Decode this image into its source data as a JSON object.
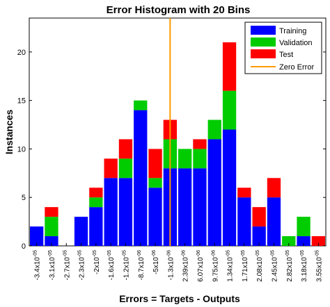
{
  "chart_data": {
    "type": "bar",
    "stacked": true,
    "title": "Error Histogram with 20 Bins",
    "xlabel": "Errors = Targets - Outputs",
    "ylabel": "Instances",
    "ylim": [
      0,
      23.5
    ],
    "yticks": [
      0,
      5,
      10,
      15,
      20
    ],
    "grid": false,
    "legend_position": "top-right",
    "categories": [
      {
        "mant": "-3.4x10",
        "exp": "-05"
      },
      {
        "mant": "-3.1x10",
        "exp": "-05"
      },
      {
        "mant": "-2.7x10",
        "exp": "-05"
      },
      {
        "mant": "-2.3x10",
        "exp": "-05"
      },
      {
        "mant": "-2x10",
        "exp": "-05"
      },
      {
        "mant": "-1.6x10",
        "exp": "-05"
      },
      {
        "mant": "-1.2x10",
        "exp": "-05"
      },
      {
        "mant": "-8.7x10",
        "exp": "-06"
      },
      {
        "mant": "-5x10",
        "exp": "-06"
      },
      {
        "mant": "-1.3x10",
        "exp": "-06"
      },
      {
        "mant": "2.39x10",
        "exp": "-06"
      },
      {
        "mant": "6.07x10",
        "exp": "-06"
      },
      {
        "mant": "9.75x10",
        "exp": "-06"
      },
      {
        "mant": "1.34x10",
        "exp": "-05"
      },
      {
        "mant": "1.71x10",
        "exp": "-05"
      },
      {
        "mant": "2.08x10",
        "exp": "-05"
      },
      {
        "mant": "2.45x10",
        "exp": "-05"
      },
      {
        "mant": "2.82x10",
        "exp": "-05"
      },
      {
        "mant": "3.18x10",
        "exp": "-05"
      },
      {
        "mant": "3.55x10",
        "exp": "-05"
      }
    ],
    "series": [
      {
        "name": "Training",
        "color": "#0000ff",
        "values": [
          2,
          1,
          0,
          3,
          4,
          7,
          7,
          14,
          6,
          8,
          8,
          8,
          11,
          12,
          5,
          2,
          5,
          0,
          1,
          0
        ]
      },
      {
        "name": "Validation",
        "color": "#00cc00",
        "values": [
          0,
          2,
          0,
          0,
          1,
          0,
          2,
          1,
          1,
          3,
          2,
          2,
          2,
          4,
          0,
          0,
          0,
          1,
          2,
          0
        ]
      },
      {
        "name": "Test",
        "color": "#ff0000",
        "values": [
          0,
          1,
          0,
          0,
          1,
          2,
          2,
          0,
          3,
          2,
          0,
          1,
          0,
          5,
          1,
          2,
          2,
          0,
          0,
          1
        ]
      }
    ],
    "zero_error": {
      "name": "Zero Error",
      "color": "#ff9900",
      "bin_position": 9.5
    }
  }
}
